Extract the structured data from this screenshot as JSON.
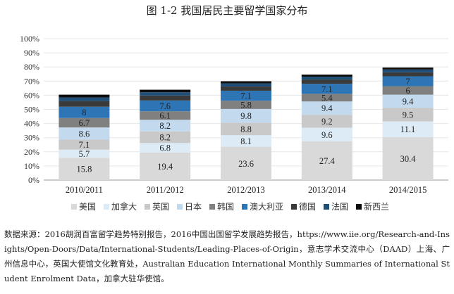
{
  "title": "图 1-2  我国居民主要留学国家分布",
  "source_text": "数据来源：2016胡润百富留学趋势特别报告，2016中国出国留学发展趋势报告，https://www.iie.org/Research-and-Insights/Open-Doors/Data/International-Students/Leading-Places-of-Origin，意志学术交流中心（DAAD）上海、广州信息中心，英国大使馆文化教育处，Australian Education International Monthly Summaries of International Student Enrolment Data，加拿大驻华使馆。",
  "chart_data": {
    "type": "bar",
    "stacked": "percent",
    "categories": [
      "2010/2011",
      "2011/2012",
      "2012/2013",
      "2013/2014",
      "2014/2015"
    ],
    "y_ticks": [
      "0%",
      "10%",
      "20%",
      "30%",
      "40%",
      "50%",
      "60%",
      "70%",
      "80%",
      "90%",
      "100%"
    ],
    "ylim": [
      0,
      100
    ],
    "legend_position": "bottom",
    "series": [
      {
        "name": "美国",
        "color": "#d9d9d9",
        "values": [
          15.8,
          19.4,
          23.6,
          27.4,
          30.4
        ],
        "labels": [
          "15.8",
          "19.4",
          "23.6",
          "27.4",
          "30.4"
        ]
      },
      {
        "name": "加拿大",
        "color": "#ddebf7",
        "values": [
          5.7,
          6.8,
          8.1,
          9.6,
          11.1
        ],
        "labels": [
          "5.7",
          "6.8",
          "8.1",
          "9.6",
          "11.1"
        ]
      },
      {
        "name": "英国",
        "color": "#c9c9c9",
        "values": [
          7.1,
          8.2,
          8.8,
          9.2,
          9.5
        ],
        "labels": [
          "7.1",
          "8.2",
          "8.8",
          "9.2",
          "9.5"
        ]
      },
      {
        "name": "日本",
        "color": "#c3d9ee",
        "values": [
          8.6,
          8.2,
          9.8,
          9.4,
          9.4
        ],
        "labels": [
          "8.6",
          "8.2",
          "9.8",
          "9.4",
          "9.4"
        ]
      },
      {
        "name": "韩国",
        "color": "#808080",
        "values": [
          6.7,
          6.1,
          5.8,
          5.4,
          6.0
        ],
        "labels": [
          "6.7",
          "6.1",
          "5.8",
          "5.4",
          "6"
        ]
      },
      {
        "name": "澳大利亚",
        "color": "#2e75b6",
        "values": [
          8.0,
          7.6,
          7.1,
          7.1,
          7.0
        ],
        "labels": [
          "8",
          "7.6",
          "7.1",
          "7.1",
          "7"
        ]
      },
      {
        "name": "德国",
        "color": "#3a3a3a",
        "values": [
          4.0,
          3.5,
          3.0,
          3.0,
          2.8
        ]
      },
      {
        "name": "法国",
        "color": "#1f4e79",
        "values": [
          2.5,
          2.3,
          2.1,
          2.0,
          2.0
        ]
      },
      {
        "name": "新西兰",
        "color": "#0d0d0d",
        "values": [
          2.0,
          1.8,
          1.6,
          1.5,
          1.4
        ]
      }
    ]
  }
}
